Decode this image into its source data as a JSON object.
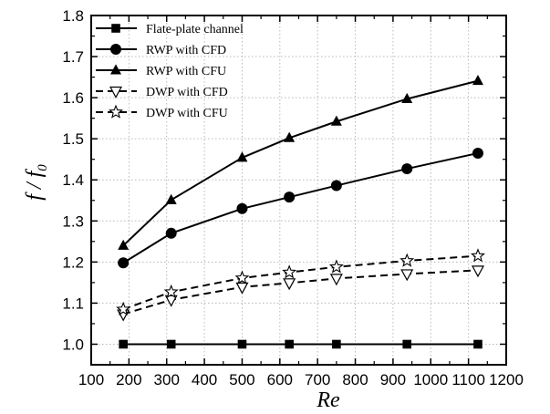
{
  "chart_data": {
    "type": "line",
    "title": "",
    "xlabel": "Re",
    "ylabel": "f / f0",
    "ylabel_parts": {
      "f": "f",
      "slash": " / ",
      "f0_base": "f",
      "f0_sub": "0"
    },
    "xlim": [
      100,
      1200
    ],
    "ylim": [
      0.95,
      1.8
    ],
    "xticks": [
      100,
      200,
      300,
      400,
      500,
      600,
      700,
      800,
      900,
      1000,
      1100,
      1200
    ],
    "yticks": [
      1.0,
      1.1,
      1.2,
      1.3,
      1.4,
      1.5,
      1.6,
      1.7,
      1.8
    ],
    "ytick_labels": [
      "1.0",
      "1.1",
      "1.2",
      "1.3",
      "1.4",
      "1.5",
      "1.6",
      "1.7",
      "1.8"
    ],
    "grid": true,
    "legend_position": "top-left",
    "x": [
      185,
      312,
      500,
      625,
      750,
      937,
      1125
    ],
    "series": [
      {
        "name": "Flate-plate channel",
        "marker": "square-filled",
        "dash": "solid",
        "values": [
          1.0,
          1.0,
          1.0,
          1.0,
          1.0,
          1.0,
          1.0
        ]
      },
      {
        "name": "RWP with CFD",
        "marker": "circle-filled",
        "dash": "solid",
        "values": [
          1.198,
          1.27,
          1.33,
          1.358,
          1.386,
          1.427,
          1.465
        ]
      },
      {
        "name": "RWP with CFU",
        "marker": "triangle-up-filled",
        "dash": "solid",
        "values": [
          1.24,
          1.351,
          1.454,
          1.502,
          1.542,
          1.597,
          1.641
        ]
      },
      {
        "name": "DWP with CFD",
        "marker": "triangle-down-open",
        "dash": "dashed",
        "values": [
          1.073,
          1.108,
          1.139,
          1.149,
          1.16,
          1.171,
          1.18
        ]
      },
      {
        "name": "DWP with CFU",
        "marker": "star-open",
        "dash": "dashed",
        "values": [
          1.085,
          1.127,
          1.161,
          1.175,
          1.188,
          1.203,
          1.215
        ]
      }
    ]
  }
}
